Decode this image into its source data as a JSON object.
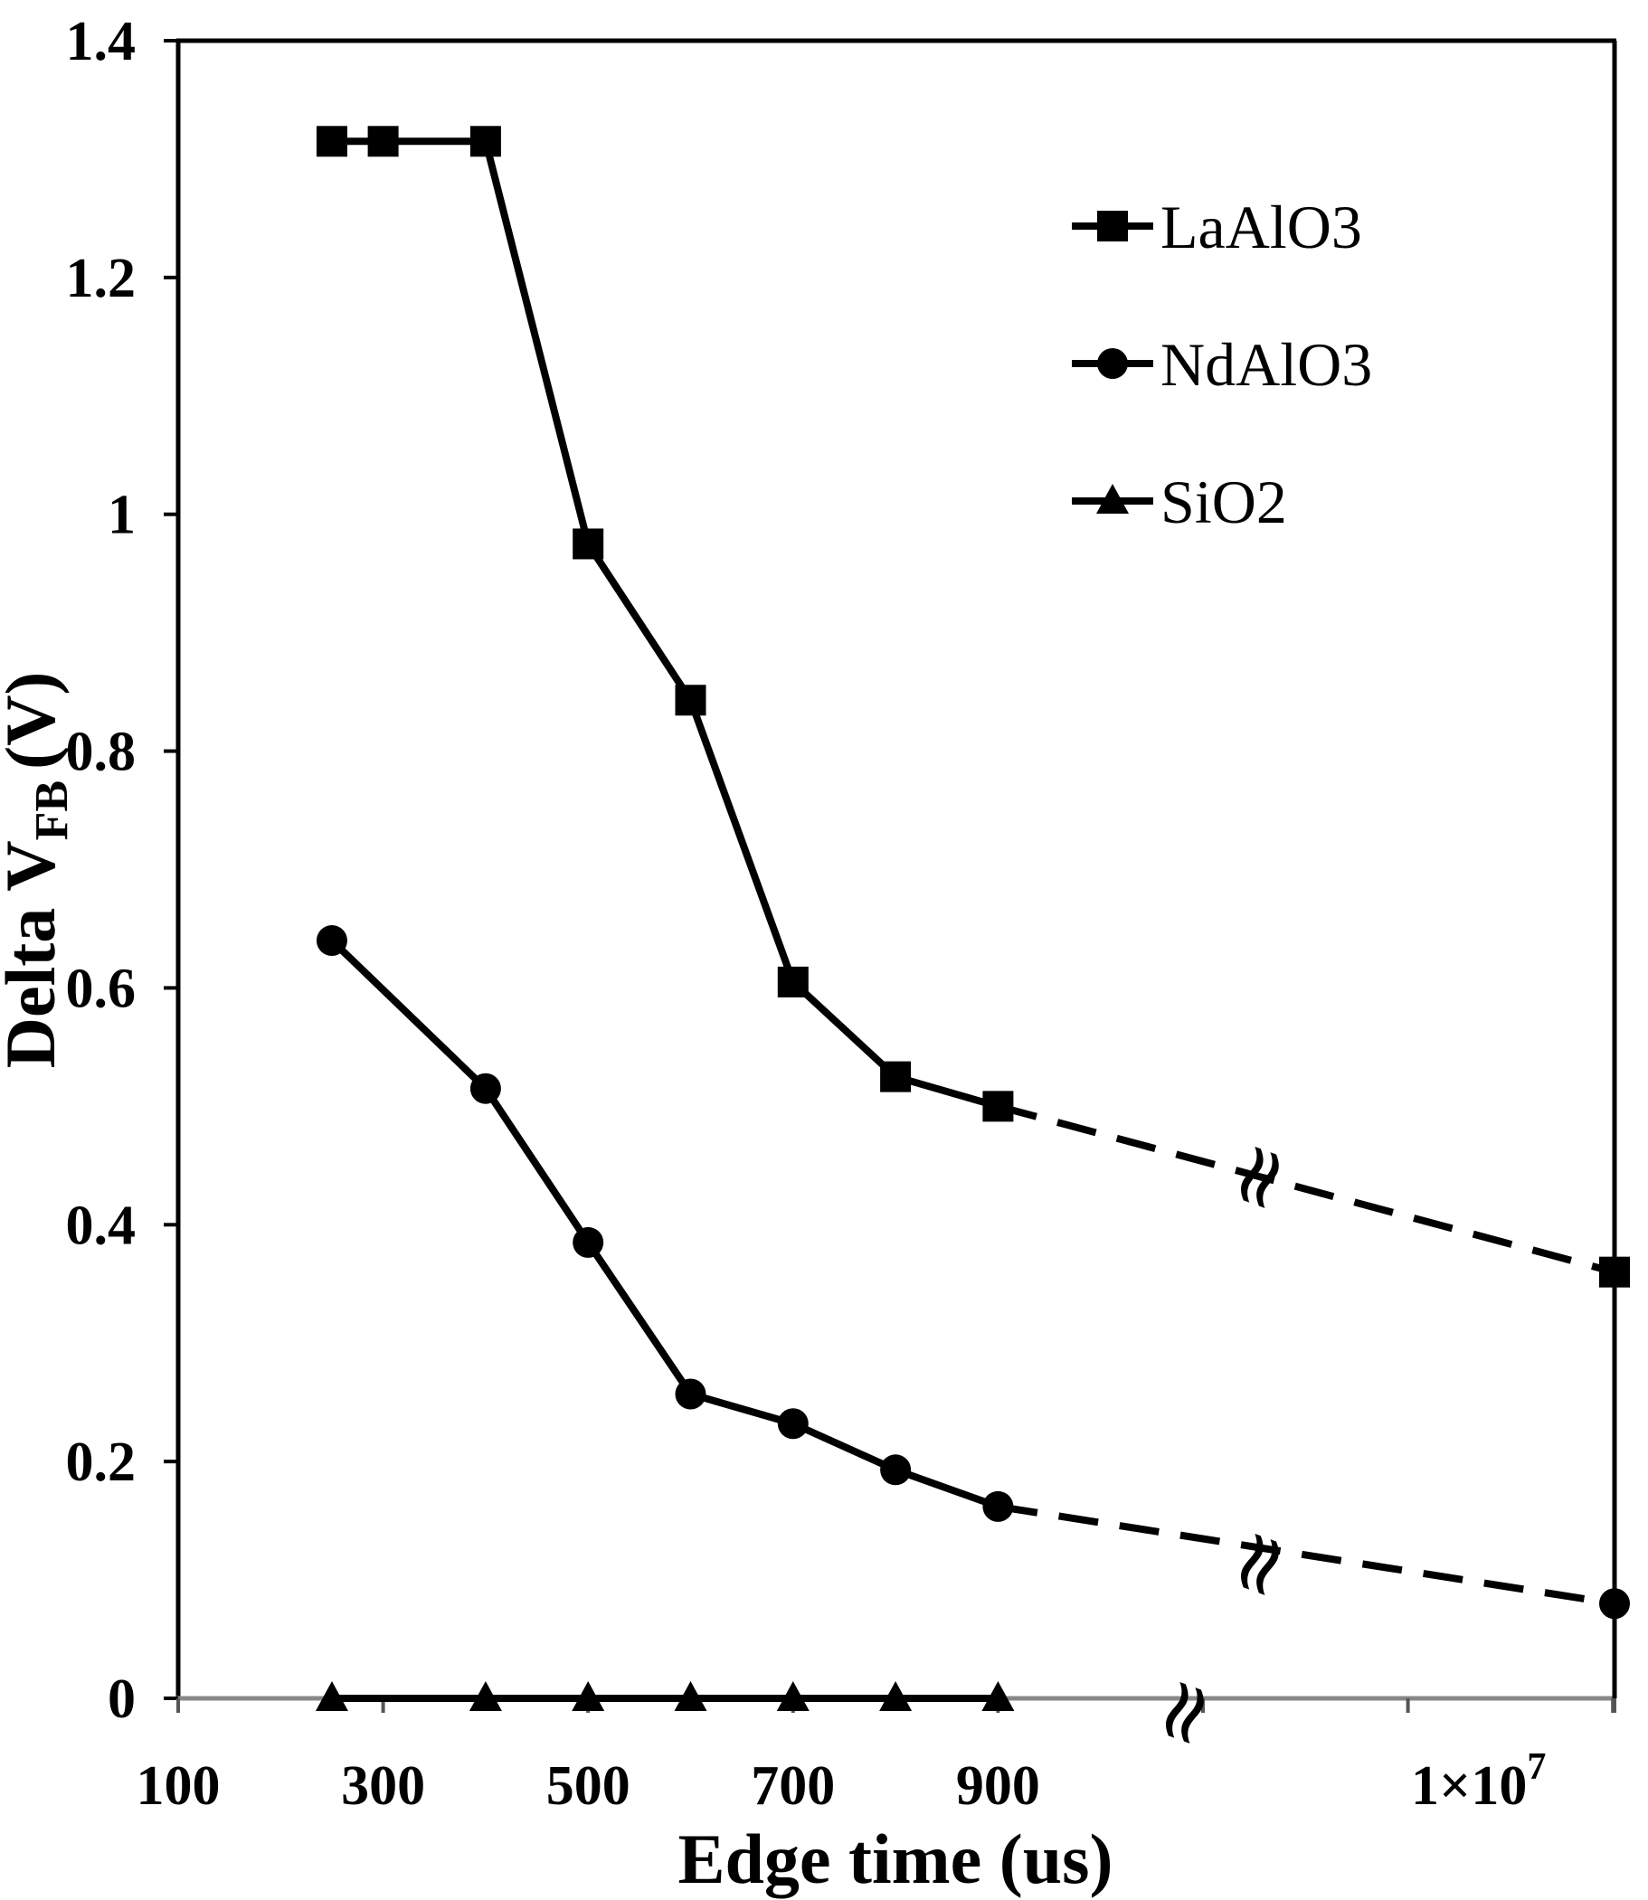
{
  "chart_data": {
    "type": "line",
    "title": "",
    "xlabel": "Edge time (us)",
    "ylabel_main": "Delta V",
    "ylabel_sub": "FB",
    "ylabel_unit": "(V)",
    "ylim": [
      0,
      1.4
    ],
    "yticks": [
      "0",
      "0.2",
      "0.4",
      "0.6",
      "0.8",
      "1",
      "1.2",
      "1.4"
    ],
    "xticks": [
      "100",
      "300",
      "500",
      "700",
      "900"
    ],
    "x_break_label_base": "1×10",
    "x_break_label_exp": "7",
    "break_symbol": "≈",
    "legend_position": "top-right",
    "series": [
      {
        "name": "LaAlO3",
        "marker": "square",
        "x": [
          250,
          300,
          400,
          500,
          600,
          700,
          800,
          900
        ],
        "values": [
          1.315,
          1.315,
          1.315,
          0.975,
          0.843,
          0.605,
          0.525,
          0.5
        ],
        "end_value": 0.36
      },
      {
        "name": "NdAlO3",
        "marker": "circle",
        "x": [
          250,
          400,
          500,
          600,
          700,
          800,
          900
        ],
        "values": [
          0.64,
          0.515,
          0.385,
          0.257,
          0.232,
          0.193,
          0.162
        ],
        "end_value": 0.08
      },
      {
        "name": "SiO2",
        "marker": "triangle",
        "x": [
          250,
          400,
          500,
          600,
          700,
          800,
          900
        ],
        "values": [
          0,
          0,
          0,
          0,
          0,
          0,
          0
        ]
      }
    ]
  }
}
